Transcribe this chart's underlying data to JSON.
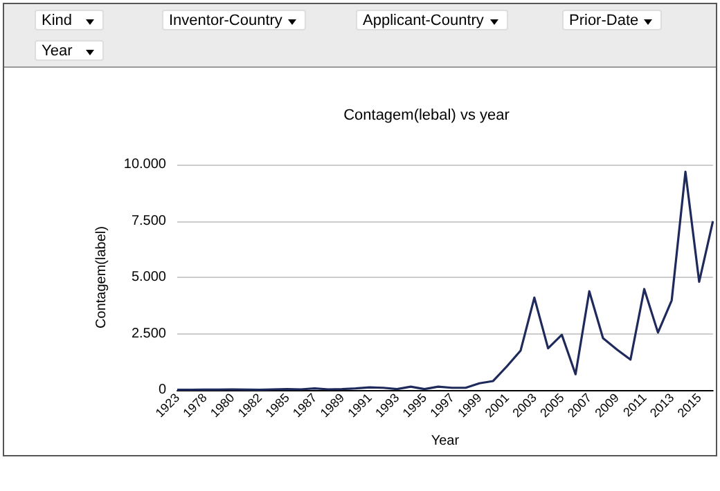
{
  "chart_data": {
    "type": "line",
    "title": "Contagem(lebal) vs year",
    "xlabel": "Year",
    "ylabel": "Contagem(label)",
    "annotations": [
      "Kind",
      "Inventor-Country",
      "Applicant-Country",
      "Prior-Date",
      "Year"
    ],
    "categories": [
      "1923",
      null,
      "1978",
      null,
      "1980",
      null,
      "1982",
      null,
      "1985",
      null,
      "1987",
      null,
      "1989",
      null,
      "1991",
      null,
      "1993",
      null,
      "1995",
      null,
      "1997",
      null,
      "1999",
      null,
      "2001",
      null,
      "2003",
      null,
      "2005",
      null,
      "2007",
      null,
      "2009",
      null,
      "2011",
      null,
      "2013",
      null,
      "2015",
      null
    ],
    "series": [
      {
        "color": "#1f2a5c",
        "values": [
          10,
          10,
          20,
          20,
          30,
          20,
          10,
          30,
          40,
          30,
          70,
          30,
          40,
          70,
          120,
          100,
          40,
          150,
          40,
          150,
          100,
          100,
          300,
          400,
          1050,
          1750,
          4100,
          1850,
          2450,
          700,
          4380,
          2300,
          1800,
          1350,
          4480,
          2550,
          3980,
          9680,
          4800,
          7490
        ]
      }
    ],
    "ylim": [
      0,
      10000
    ],
    "yticks": [
      0,
      {
        "value": 2500,
        "label": "2.500"
      },
      {
        "value": 5000,
        "label": "5.000"
      },
      {
        "value": 7500,
        "label": "7.500"
      },
      {
        "value": 10000,
        "label": "10.000"
      }
    ],
    "grid": "y",
    "marker": "none",
    "line_style": "solid"
  }
}
